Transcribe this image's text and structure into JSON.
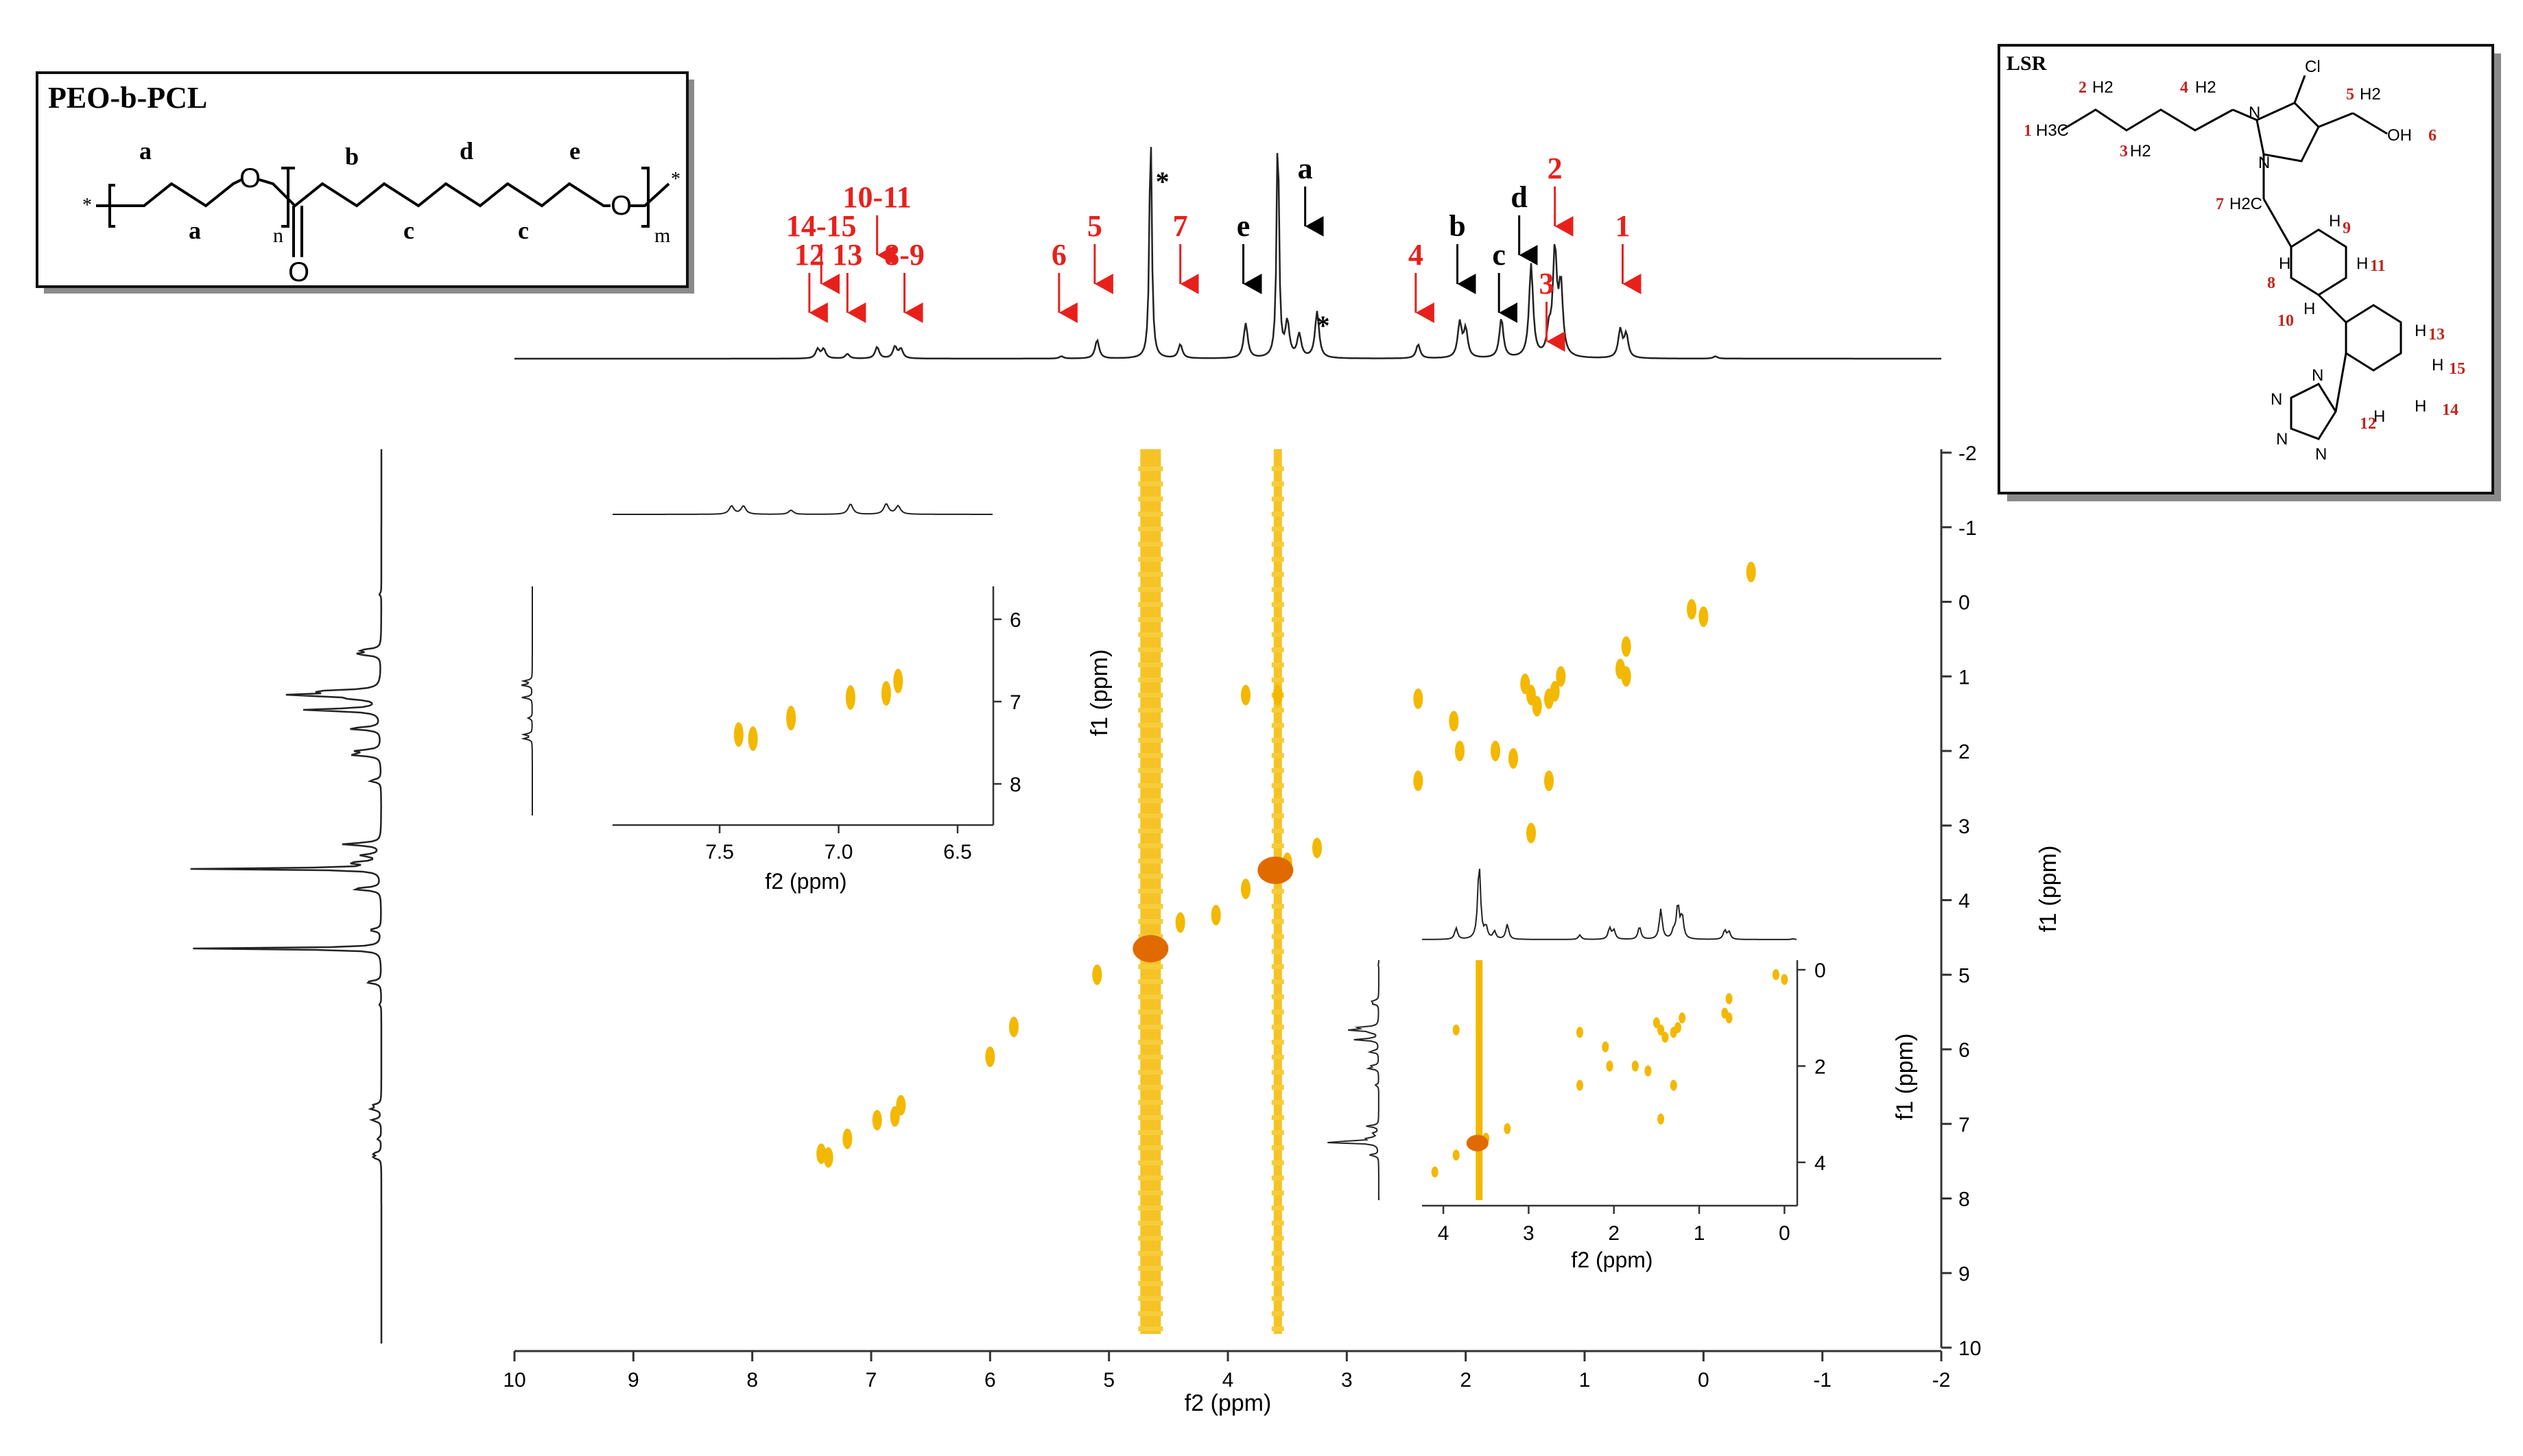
{
  "chart_data": {
    "type": "heatmap",
    "subtype": "2D NMR COSY spectrum with 1D projections and zoomed insets",
    "title": "",
    "xlabel": "f2 (ppm)",
    "ylabel": "f1 (ppm)",
    "x_ticks": [
      "10",
      "9",
      "8",
      "7",
      "6",
      "5",
      "4",
      "3",
      "2",
      "1",
      "0",
      "-1",
      "-2"
    ],
    "y_ticks": [
      "-2",
      "-1",
      "0",
      "1",
      "2",
      "3",
      "4",
      "5",
      "6",
      "7",
      "8",
      "9",
      "10"
    ],
    "xlim": [
      10,
      -2
    ],
    "ylim": [
      -2,
      10
    ],
    "colors": {
      "contour": "#f3b800",
      "contour_strong": "#e06a00",
      "peak_arrow_red": "#e8201c",
      "peak_arrow_black": "#000000",
      "trace": "#222222"
    },
    "vertical_streaks_ppm": [
      4.65,
      3.58
    ],
    "cosy_peaks": [
      {
        "f2": -0.4,
        "f1": -0.4
      },
      {
        "f2": 0.0,
        "f1": 0.2
      },
      {
        "f2": 0.1,
        "f1": 0.1
      },
      {
        "f2": 0.65,
        "f1": 0.6
      },
      {
        "f2": 0.7,
        "f1": 0.9
      },
      {
        "f2": 0.65,
        "f1": 1.0
      },
      {
        "f2": 1.2,
        "f1": 1.0
      },
      {
        "f2": 1.25,
        "f1": 1.2
      },
      {
        "f2": 1.3,
        "f1": 1.3
      },
      {
        "f2": 1.45,
        "f1": 1.25
      },
      {
        "f2": 1.4,
        "f1": 1.4
      },
      {
        "f2": 1.5,
        "f1": 1.1
      },
      {
        "f2": 1.3,
        "f1": 2.4
      },
      {
        "f2": 1.45,
        "f1": 3.1
      },
      {
        "f2": 2.05,
        "f1": 2.0
      },
      {
        "f2": 2.4,
        "f1": 2.4
      },
      {
        "f2": 2.4,
        "f1": 1.3
      },
      {
        "f2": 1.6,
        "f1": 2.1
      },
      {
        "f2": 1.75,
        "f1": 2.0
      },
      {
        "f2": 2.1,
        "f1": 1.6
      },
      {
        "f2": 3.25,
        "f1": 3.3
      },
      {
        "f2": 3.5,
        "f1": 3.5
      },
      {
        "f2": 3.85,
        "f1": 3.85
      },
      {
        "f2": 3.85,
        "f1": 1.25
      },
      {
        "f2": 3.58,
        "f1": 1.25
      },
      {
        "f2": 3.6,
        "f1": 3.6
      },
      {
        "f2": 4.1,
        "f1": 4.2
      },
      {
        "f2": 4.4,
        "f1": 4.3
      },
      {
        "f2": 4.65,
        "f1": 4.65
      },
      {
        "f2": 5.1,
        "f1": 5.0
      },
      {
        "f2": 5.8,
        "f1": 5.7
      },
      {
        "f2": 6.0,
        "f1": 6.1
      },
      {
        "f2": 6.75,
        "f1": 6.75
      },
      {
        "f2": 6.8,
        "f1": 6.9
      },
      {
        "f2": 6.95,
        "f1": 6.95
      },
      {
        "f2": 7.2,
        "f1": 7.2
      },
      {
        "f2": 7.42,
        "f1": 7.4
      },
      {
        "f2": 7.36,
        "f1": 7.45
      }
    ],
    "top_spectrum_peaks": [
      {
        "ppm": 7.45,
        "h": 0.04
      },
      {
        "ppm": 7.4,
        "h": 0.04
      },
      {
        "ppm": 7.2,
        "h": 0.02
      },
      {
        "ppm": 6.95,
        "h": 0.05
      },
      {
        "ppm": 6.8,
        "h": 0.05
      },
      {
        "ppm": 6.75,
        "h": 0.04
      },
      {
        "ppm": 5.4,
        "h": 0.01
      },
      {
        "ppm": 5.1,
        "h": 0.08
      },
      {
        "ppm": 4.65,
        "h": 1.0
      },
      {
        "ppm": 4.4,
        "h": 0.06
      },
      {
        "ppm": 3.85,
        "h": 0.15
      },
      {
        "ppm": 3.58,
        "h": 1.0
      },
      {
        "ppm": 3.5,
        "h": 0.15
      },
      {
        "ppm": 3.4,
        "h": 0.1
      },
      {
        "ppm": 3.25,
        "h": 0.2
      },
      {
        "ppm": 2.4,
        "h": 0.06
      },
      {
        "ppm": 2.05,
        "h": 0.15
      },
      {
        "ppm": 2.0,
        "h": 0.12
      },
      {
        "ppm": 1.7,
        "h": 0.17
      },
      {
        "ppm": 1.45,
        "h": 0.4
      },
      {
        "ppm": 1.3,
        "h": 0.1
      },
      {
        "ppm": 1.25,
        "h": 0.45
      },
      {
        "ppm": 1.2,
        "h": 0.3
      },
      {
        "ppm": 0.7,
        "h": 0.12
      },
      {
        "ppm": 0.65,
        "h": 0.1
      },
      {
        "ppm": -0.1,
        "h": 0.01
      }
    ],
    "peak_labels": [
      {
        "text": "14-15",
        "ppm": 7.42,
        "color": "red",
        "tier": 3
      },
      {
        "text": "12",
        "ppm": 7.52,
        "color": "red",
        "tier": 2
      },
      {
        "text": "13",
        "ppm": 7.2,
        "color": "red",
        "tier": 2
      },
      {
        "text": "10-11",
        "ppm": 6.95,
        "color": "red",
        "tier": 4
      },
      {
        "text": "8-9",
        "ppm": 6.72,
        "color": "red",
        "tier": 2
      },
      {
        "text": "6",
        "ppm": 5.42,
        "color": "red",
        "tier": 2
      },
      {
        "text": "5",
        "ppm": 5.12,
        "color": "red",
        "tier": 3
      },
      {
        "text": "*",
        "ppm": 4.55,
        "color": "black",
        "tier": 6
      },
      {
        "text": "7",
        "ppm": 4.4,
        "color": "red",
        "tier": 3
      },
      {
        "text": "e",
        "ppm": 3.87,
        "color": "black",
        "tier": 3
      },
      {
        "text": "a",
        "ppm": 3.35,
        "color": "black",
        "tier": 5
      },
      {
        "text": "*",
        "ppm": 3.2,
        "color": "black",
        "tier": 1
      },
      {
        "text": "4",
        "ppm": 2.42,
        "color": "red",
        "tier": 2
      },
      {
        "text": "b",
        "ppm": 2.07,
        "color": "black",
        "tier": 3
      },
      {
        "text": "c",
        "ppm": 1.72,
        "color": "black",
        "tier": 2
      },
      {
        "text": "d",
        "ppm": 1.55,
        "color": "black",
        "tier": 4
      },
      {
        "text": "3",
        "ppm": 1.32,
        "color": "red",
        "tier": 1
      },
      {
        "text": "2",
        "ppm": 1.25,
        "color": "red",
        "tier": 5
      },
      {
        "text": "1",
        "ppm": 0.68,
        "color": "red",
        "tier": 3
      }
    ],
    "inset_aromatic": {
      "xlabel": "f2 (ppm)",
      "x_ticks": [
        "7.5",
        "7.0",
        "6.5"
      ],
      "y_ticks": [
        "6",
        "7",
        "8"
      ],
      "xlim": [
        7.95,
        6.35
      ],
      "ylim": [
        5.6,
        8.5
      ]
    },
    "inset_aliphatic": {
      "xlabel": "f2 (ppm)",
      "ylabel": "f1 (ppm)",
      "x_ticks": [
        "4",
        "3",
        "2",
        "1",
        "0"
      ],
      "y_ticks": [
        "0",
        "2",
        "4"
      ],
      "xlim": [
        4.25,
        -0.15
      ],
      "ylim": [
        -0.2,
        4.9
      ]
    }
  },
  "structures": {
    "peo_pcl": {
      "title": "PEO-b-PCL",
      "letters": [
        "a",
        "a",
        "b",
        "c",
        "d",
        "c",
        "e"
      ],
      "atoms": [
        "O",
        "O",
        "O"
      ],
      "subscripts": [
        "n",
        "m"
      ],
      "star": "*"
    },
    "lsr": {
      "title": "LSR",
      "groups": [
        "H3C",
        "H2",
        "H2",
        "H2",
        "H2",
        "OH",
        "Cl",
        "N",
        "N",
        "H2C",
        "H",
        "H",
        "H",
        "H",
        "N",
        "N",
        "N",
        "N",
        "H",
        "H",
        "H",
        "H"
      ],
      "numbers": [
        "1",
        "2",
        "3",
        "4",
        "5",
        "6",
        "7",
        "8",
        "9",
        "10",
        "11",
        "12",
        "13",
        "14",
        "15"
      ]
    }
  }
}
